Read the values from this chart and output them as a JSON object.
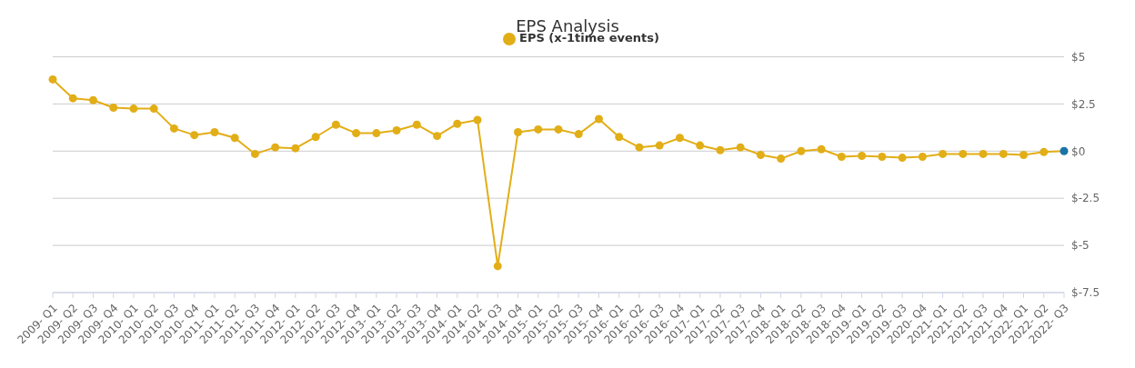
{
  "chart_data": {
    "type": "line",
    "title": "EPS Analysis",
    "categories": [
      "2009- Q1",
      "2009- Q2",
      "2009- Q3",
      "2009- Q4",
      "2010- Q1",
      "2010- Q2",
      "2010- Q3",
      "2010- Q4",
      "2011- Q1",
      "2011- Q2",
      "2011- Q3",
      "2011- Q4",
      "2012- Q1",
      "2012- Q2",
      "2012- Q3",
      "2012- Q4",
      "2013- Q1",
      "2013- Q2",
      "2013- Q3",
      "2013- Q4",
      "2014- Q1",
      "2014- Q2",
      "2014- Q3",
      "2014- Q4",
      "2015- Q1",
      "2015- Q2",
      "2015- Q3",
      "2015- Q4",
      "2016- Q1",
      "2016- Q2",
      "2016- Q3",
      "2016- Q4",
      "2017- Q1",
      "2017- Q2",
      "2017- Q3",
      "2017- Q4",
      "2018- Q1",
      "2018- Q2",
      "2018- Q3",
      "2018- Q4",
      "2019- Q1",
      "2019- Q2",
      "2019- Q3",
      "2020- Q4",
      "2021- Q1",
      "2021- Q2",
      "2021- Q3",
      "2021- Q4",
      "2022- Q1",
      "2022- Q2",
      "2022- Q3"
    ],
    "series": [
      {
        "name": "EPS (x-1time events)",
        "color": "#e2ae17",
        "colors": [
          "#e2ae17",
          "#e2ae17",
          "#e2ae17",
          "#e2ae17",
          "#e2ae17",
          "#e2ae17",
          "#e2ae17",
          "#e2ae17",
          "#e2ae17",
          "#e2ae17",
          "#e2ae17",
          "#e2ae17",
          "#e2ae17",
          "#e2ae17",
          "#e2ae17",
          "#e2ae17",
          "#e2ae17",
          "#e2ae17",
          "#e2ae17",
          "#e2ae17",
          "#e2ae17",
          "#e2ae17",
          "#e2ae17",
          "#e2ae17",
          "#e2ae17",
          "#e2ae17",
          "#e2ae17",
          "#e2ae17",
          "#e2ae17",
          "#e2ae17",
          "#e2ae17",
          "#e2ae17",
          "#e2ae17",
          "#e2ae17",
          "#e2ae17",
          "#e2ae17",
          "#e2ae17",
          "#e2ae17",
          "#e2ae17",
          "#e2ae17",
          "#e2ae17",
          "#e2ae17",
          "#e2ae17",
          "#e2ae17",
          "#e2ae17",
          "#e2ae17",
          "#e2ae17",
          "#e2ae17",
          "#e2ae17",
          "#e2ae17",
          "#1a73a8"
        ],
        "values": [
          3.8,
          2.8,
          2.7,
          2.3,
          2.25,
          2.25,
          1.2,
          0.85,
          1.0,
          0.7,
          -0.15,
          0.2,
          0.15,
          0.75,
          1.4,
          0.95,
          0.95,
          1.1,
          1.4,
          0.8,
          1.45,
          1.65,
          -6.1,
          1.0,
          1.15,
          1.15,
          0.9,
          1.7,
          0.75,
          0.2,
          0.3,
          0.7,
          0.3,
          0.05,
          0.2,
          -0.2,
          -0.4,
          0.0,
          0.1,
          -0.3,
          -0.25,
          -0.3,
          -0.35,
          -0.3,
          -0.15,
          -0.15,
          -0.15,
          -0.15,
          -0.2,
          -0.05,
          0.0
        ]
      }
    ],
    "ylim": [
      -7.5,
      5
    ],
    "yticks": [
      {
        "value": -7.5,
        "label": "$-7.5"
      },
      {
        "value": -5,
        "label": "$-5"
      },
      {
        "value": -2.5,
        "label": "$-2.5"
      },
      {
        "value": 0,
        "label": "$0"
      },
      {
        "value": 2.5,
        "label": "$2.5"
      },
      {
        "value": 5,
        "label": "$5"
      }
    ],
    "grid": "y",
    "legend": "top",
    "marker": "circle",
    "line_style": "solid"
  }
}
